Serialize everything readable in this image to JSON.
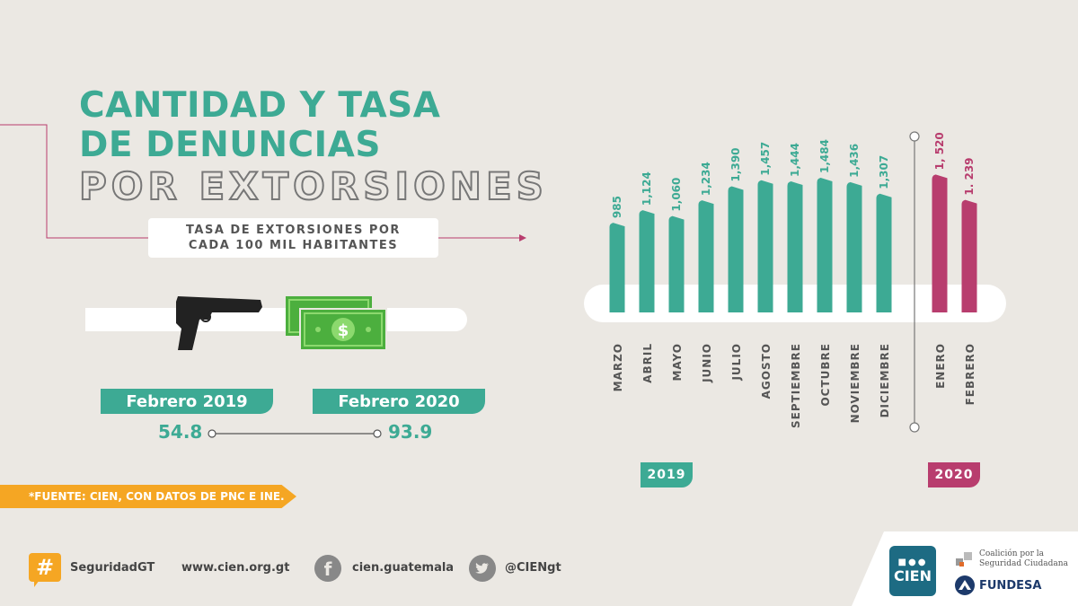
{
  "title": {
    "line1": "CANTIDAD Y TASA",
    "line2": "DE DENUNCIAS",
    "line3": "POR EXTORSIONES"
  },
  "subtitle": {
    "line1": "TASA DE EXTORSIONES POR",
    "line2": "CADA 100 MIL HABITANTES"
  },
  "comparison": {
    "left_label": "Febrero 2019",
    "left_value": "54.8",
    "right_label": "Febrero 2020",
    "right_value": "93.9"
  },
  "source": "*FUENTE: CIEN, CON DATOS DE PNC E INE.",
  "footer": {
    "hashtag": "SeguridadGT",
    "website": "www.cien.org.gt",
    "facebook": "cien.guatemala",
    "twitter": "@CIENgt",
    "logo_cien": "CIEN",
    "logo_coalicion_1": "Coalición por la",
    "logo_coalicion_2": "Seguridad Ciudadana",
    "logo_fundesa": "FUNDESA"
  },
  "colors": {
    "teal": "#3daa94",
    "magenta": "#b83d6e",
    "orange": "#f5a623"
  },
  "chart_data": {
    "type": "bar",
    "groups": [
      "2019",
      "2020"
    ],
    "categories": [
      "MARZO",
      "ABRIL",
      "MAYO",
      "JUNIO",
      "JULIO",
      "AGOSTO",
      "SEPTIEMBRE",
      "OCTUBRE",
      "NOVIEMBRE",
      "DICIEMBRE",
      "ENERO",
      "FEBRERO"
    ],
    "values": [
      985,
      1124,
      1060,
      1234,
      1390,
      1457,
      1444,
      1484,
      1436,
      1307,
      1520,
      1239
    ],
    "labels": [
      "985",
      "1,124",
      "1,060",
      "1,234",
      "1,390",
      "1,457",
      "1,444",
      "1,484",
      "1,436",
      "1,307",
      "1, 520",
      "1. 239"
    ],
    "year_of_bar": [
      "2019",
      "2019",
      "2019",
      "2019",
      "2019",
      "2019",
      "2019",
      "2019",
      "2019",
      "2019",
      "2020",
      "2020"
    ]
  }
}
